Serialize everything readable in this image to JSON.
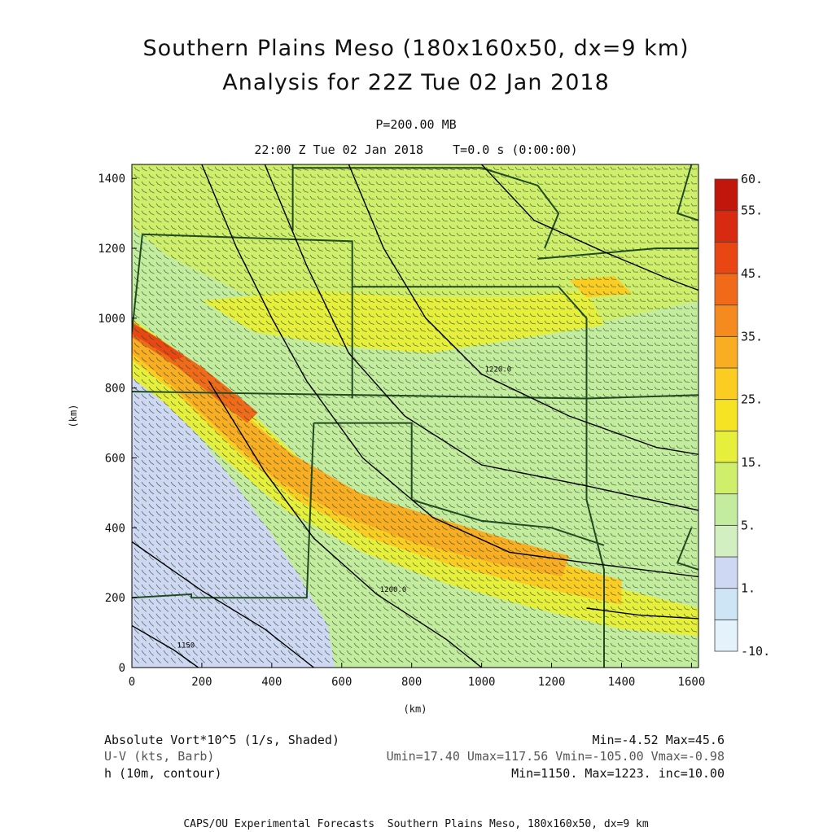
{
  "header": {
    "title_line1": "Southern Plains Meso (180x160x50, dx=9 km)",
    "title_line2": "Analysis for 22Z Tue 02 Jan 2018",
    "level": "P=200.00 MB",
    "valid_time": "22:00 Z Tue 02 Jan 2018    T=0.0 s (0:00:00)"
  },
  "footer": {
    "field1_label": "Absolute Vort*10^5 (1/s, Shaded)",
    "field1_stats": "Min=-4.52 Max=45.6",
    "field2_label": "U-V (kts, Barb)",
    "field2_stats": "Umin=17.40 Umax=117.56 Vmin=-105.00 Vmax=-0.98",
    "field3_label": "h (10m, contour)",
    "field3_stats": "Min=1150. Max=1223. inc=10.00",
    "credit": "CAPS/OU Experimental Forecasts  Southern Plains Meso, 180x160x50, dx=9 km"
  },
  "chart_data": {
    "type": "heatmap",
    "xlabel": "(km)",
    "ylabel": "(km)",
    "xlim": [
      0,
      1620
    ],
    "ylim": [
      0,
      1440
    ],
    "xticks": [
      0,
      200,
      400,
      600,
      800,
      1000,
      1200,
      1400,
      1600
    ],
    "yticks": [
      0,
      200,
      400,
      600,
      800,
      1000,
      1200,
      1400
    ],
    "colorbar": {
      "levels": [
        "-10.",
        "",
        "1.",
        "",
        "5.",
        "",
        "15.",
        "",
        "25.",
        "",
        "35.",
        "",
        "45.",
        "",
        "55.",
        "60."
      ],
      "colors": [
        "#e4f2fb",
        "#cde5f5",
        "#cfd8f2",
        "#d2efc2",
        "#c4ec9e",
        "#cfee6c",
        "#e6ef3c",
        "#f6e324",
        "#fbcd22",
        "#f9ad22",
        "#f58a1e",
        "#f06a1a",
        "#e84714",
        "#d82a10",
        "#c0160c"
      ]
    },
    "vorticity_regions": [
      {
        "name": "background",
        "color": "#c4ec9e",
        "polygon": [
          [
            0,
            0
          ],
          [
            1620,
            0
          ],
          [
            1620,
            1440
          ],
          [
            0,
            1440
          ]
        ]
      },
      {
        "name": "north-yellow",
        "color": "#cfee6c",
        "polygon": [
          [
            0,
            1440
          ],
          [
            1620,
            1440
          ],
          [
            1620,
            1050
          ],
          [
            1300,
            980
          ],
          [
            1000,
            930
          ],
          [
            800,
            950
          ],
          [
            500,
            1020
          ],
          [
            300,
            1080
          ],
          [
            100,
            1180
          ],
          [
            0,
            1260
          ]
        ]
      },
      {
        "name": "central-yellow",
        "color": "#e6ef3c",
        "polygon": [
          [
            200,
            1050
          ],
          [
            500,
            1080
          ],
          [
            800,
            1060
          ],
          [
            1100,
            1060
          ],
          [
            1300,
            1080
          ],
          [
            1350,
            980
          ],
          [
            1100,
            940
          ],
          [
            850,
            900
          ],
          [
            600,
            920
          ],
          [
            350,
            960
          ]
        ]
      },
      {
        "name": "southwest-low",
        "color": "#cfd8f2",
        "polygon": [
          [
            0,
            0
          ],
          [
            580,
            0
          ],
          [
            560,
            120
          ],
          [
            480,
            260
          ],
          [
            400,
            380
          ],
          [
            300,
            520
          ],
          [
            200,
            650
          ],
          [
            110,
            760
          ],
          [
            40,
            850
          ],
          [
            0,
            870
          ]
        ]
      },
      {
        "name": "band-light",
        "color": "#e6ef3c",
        "polygon": [
          [
            0,
            1000
          ],
          [
            140,
            900
          ],
          [
            330,
            740
          ],
          [
            520,
            560
          ],
          [
            760,
            430
          ],
          [
            1020,
            340
          ],
          [
            1260,
            260
          ],
          [
            1500,
            200
          ],
          [
            1620,
            170
          ],
          [
            1620,
            90
          ],
          [
            1400,
            110
          ],
          [
            1150,
            170
          ],
          [
            900,
            240
          ],
          [
            660,
            330
          ],
          [
            440,
            450
          ],
          [
            260,
            600
          ],
          [
            90,
            760
          ],
          [
            0,
            830
          ]
        ]
      },
      {
        "name": "band-mid",
        "color": "#fbcd22",
        "polygon": [
          [
            0,
            990
          ],
          [
            150,
            880
          ],
          [
            330,
            720
          ],
          [
            510,
            560
          ],
          [
            750,
            440
          ],
          [
            1000,
            370
          ],
          [
            1220,
            300
          ],
          [
            1400,
            250
          ],
          [
            1400,
            180
          ],
          [
            1160,
            230
          ],
          [
            920,
            290
          ],
          [
            680,
            370
          ],
          [
            470,
            480
          ],
          [
            300,
            620
          ],
          [
            120,
            790
          ],
          [
            0,
            880
          ]
        ]
      },
      {
        "name": "band-core",
        "color": "#f9ad22",
        "polygon": [
          [
            0,
            970
          ],
          [
            140,
            870
          ],
          [
            300,
            730
          ],
          [
            460,
            610
          ],
          [
            650,
            500
          ],
          [
            900,
            420
          ],
          [
            1100,
            360
          ],
          [
            1250,
            320
          ],
          [
            1230,
            260
          ],
          [
            1030,
            300
          ],
          [
            800,
            360
          ],
          [
            590,
            440
          ],
          [
            410,
            540
          ],
          [
            250,
            680
          ],
          [
            100,
            820
          ],
          [
            0,
            900
          ]
        ]
      },
      {
        "name": "band-max",
        "color": "#f06a1a",
        "polygon": [
          [
            0,
            990
          ],
          [
            80,
            940
          ],
          [
            200,
            860
          ],
          [
            300,
            780
          ],
          [
            360,
            730
          ],
          [
            330,
            700
          ],
          [
            240,
            770
          ],
          [
            130,
            860
          ],
          [
            40,
            920
          ],
          [
            0,
            945
          ]
        ]
      },
      {
        "name": "band-peak",
        "color": "#e84714",
        "polygon": [
          [
            0,
            985
          ],
          [
            70,
            945
          ],
          [
            150,
            890
          ],
          [
            120,
            880
          ],
          [
            50,
            925
          ],
          [
            0,
            955
          ]
        ]
      },
      {
        "name": "east-orange",
        "color": "#fbcd22",
        "polygon": [
          [
            1250,
            1110
          ],
          [
            1380,
            1120
          ],
          [
            1430,
            1070
          ],
          [
            1300,
            1060
          ]
        ]
      }
    ],
    "height_contours": [
      {
        "label": "1150",
        "points": [
          [
            0,
            120
          ],
          [
            120,
            50
          ],
          [
            190,
            0
          ]
        ]
      },
      {
        "label": "",
        "points": [
          [
            0,
            360
          ],
          [
            200,
            220
          ],
          [
            380,
            110
          ],
          [
            520,
            0
          ]
        ]
      },
      {
        "label": "1200.0",
        "points": [
          [
            220,
            820
          ],
          [
            380,
            560
          ],
          [
            520,
            370
          ],
          [
            700,
            210
          ],
          [
            900,
            80
          ],
          [
            1000,
            0
          ]
        ]
      },
      {
        "label": "",
        "points": [
          [
            380,
            1440
          ],
          [
            500,
            1150
          ],
          [
            620,
            900
          ],
          [
            780,
            720
          ],
          [
            1000,
            580
          ],
          [
            1300,
            520
          ],
          [
            1620,
            450
          ]
        ]
      },
      {
        "label": "1220.0",
        "points": [
          [
            620,
            1440
          ],
          [
            720,
            1200
          ],
          [
            840,
            1000
          ],
          [
            1000,
            840
          ],
          [
            1250,
            720
          ],
          [
            1500,
            630
          ],
          [
            1620,
            610
          ]
        ]
      },
      {
        "label": "",
        "points": [
          [
            1000,
            1440
          ],
          [
            1150,
            1280
          ],
          [
            1350,
            1190
          ],
          [
            1540,
            1110
          ],
          [
            1620,
            1080
          ]
        ]
      },
      {
        "label": "",
        "points": [
          [
            200,
            1440
          ],
          [
            300,
            1200
          ],
          [
            400,
            1000
          ],
          [
            500,
            820
          ],
          [
            660,
            600
          ],
          [
            860,
            430
          ],
          [
            1080,
            330
          ],
          [
            1300,
            300
          ],
          [
            1620,
            260
          ]
        ]
      },
      {
        "label": "",
        "points": [
          [
            1300,
            170
          ],
          [
            1450,
            150
          ],
          [
            1620,
            140
          ]
        ]
      }
    ],
    "state_borders": [
      [
        [
          0,
          790
        ],
        [
          1300,
          770
        ],
        [
          1620,
          780
        ]
      ],
      [
        [
          1300,
          770
        ],
        [
          1300,
          480
        ],
        [
          1350,
          280
        ],
        [
          1350,
          0
        ]
      ],
      [
        [
          520,
          700
        ],
        [
          800,
          700
        ],
        [
          800,
          480
        ]
      ],
      [
        [
          800,
          480
        ],
        [
          1000,
          420
        ],
        [
          1200,
          400
        ],
        [
          1350,
          350
        ]
      ],
      [
        [
          520,
          700
        ],
        [
          500,
          200
        ],
        [
          170,
          200
        ],
        [
          170,
          210
        ],
        [
          0,
          200
        ]
      ],
      [
        [
          30,
          1240
        ],
        [
          630,
          1220
        ],
        [
          630,
          770
        ]
      ],
      [
        [
          630,
          1090
        ],
        [
          1220,
          1090
        ],
        [
          1300,
          1000
        ],
        [
          1300,
          770
        ]
      ],
      [
        [
          460,
          1440
        ],
        [
          460,
          1440
        ],
        [
          460,
          1250
        ]
      ],
      [
        [
          460,
          1430
        ],
        [
          1000,
          1430
        ],
        [
          1160,
          1380
        ],
        [
          1220,
          1300
        ],
        [
          1180,
          1200
        ]
      ],
      [
        [
          1160,
          1170
        ],
        [
          1500,
          1200
        ],
        [
          1620,
          1200
        ]
      ],
      [
        [
          0,
          960
        ],
        [
          30,
          1240
        ]
      ],
      [
        [
          1600,
          1440
        ],
        [
          1560,
          1300
        ],
        [
          1620,
          1280
        ]
      ],
      [
        [
          1600,
          400
        ],
        [
          1560,
          300
        ],
        [
          1620,
          280
        ]
      ]
    ]
  }
}
